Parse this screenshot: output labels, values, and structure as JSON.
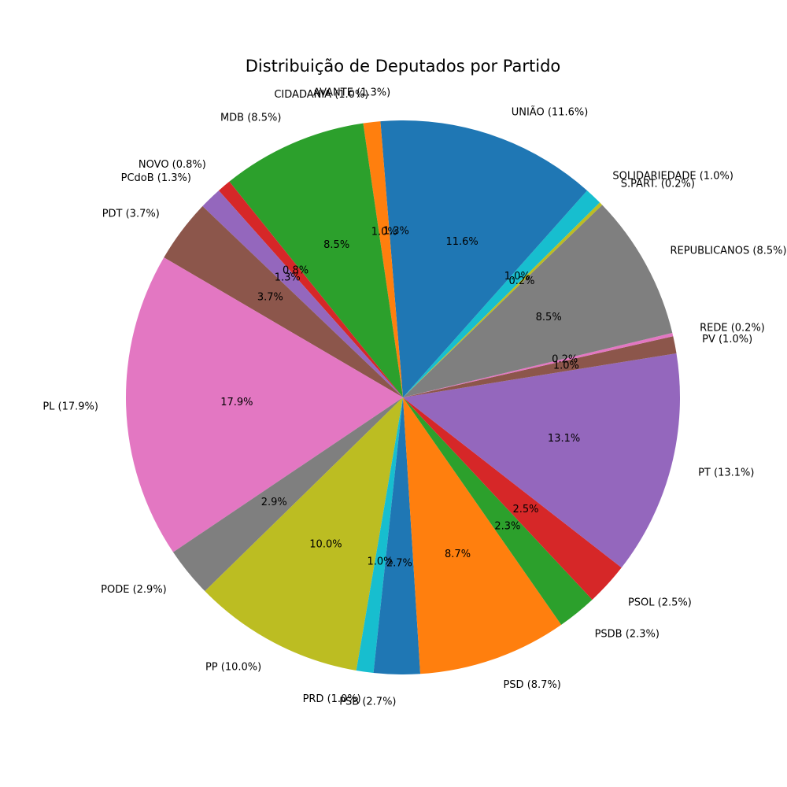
{
  "chart_data": {
    "type": "pie",
    "title": "Distribuição de Deputados por Partido",
    "start_angle_deg": 90,
    "direction": "counterclockwise",
    "slices": [
      {
        "label": "AVANTE (1.3%)",
        "pct_label": "1.3%",
        "value": 1.3,
        "color": "#1f77b4"
      },
      {
        "label": "CIDADANIA (1.0%)",
        "pct_label": "1.0%",
        "value": 1.0,
        "color": "#ff7f0e"
      },
      {
        "label": "MDB (8.5%)",
        "pct_label": "8.5%",
        "value": 8.5,
        "color": "#2ca02c"
      },
      {
        "label": "NOVO (0.8%)",
        "pct_label": "0.8%",
        "value": 0.8,
        "color": "#d62728"
      },
      {
        "label": "PCdoB (1.3%)",
        "pct_label": "1.3%",
        "value": 1.3,
        "color": "#9467bd"
      },
      {
        "label": "PDT (3.7%)",
        "pct_label": "3.7%",
        "value": 3.7,
        "color": "#8c564b"
      },
      {
        "label": "PL (17.9%)",
        "pct_label": "17.9%",
        "value": 17.9,
        "color": "#e377c2"
      },
      {
        "label": "PODE (2.9%)",
        "pct_label": "2.9%",
        "value": 2.9,
        "color": "#7f7f7f"
      },
      {
        "label": "PP (10.0%)",
        "pct_label": "10.0%",
        "value": 10.0,
        "color": "#bcbd22"
      },
      {
        "label": "PRD (1.0%)",
        "pct_label": "1.0%",
        "value": 1.0,
        "color": "#17becf"
      },
      {
        "label": "PSB (2.7%)",
        "pct_label": "2.7%",
        "value": 2.7,
        "color": "#1f77b4"
      },
      {
        "label": "PSD (8.7%)",
        "pct_label": "8.7%",
        "value": 8.7,
        "color": "#ff7f0e"
      },
      {
        "label": "PSDB (2.3%)",
        "pct_label": "2.3%",
        "value": 2.3,
        "color": "#2ca02c"
      },
      {
        "label": "PSOL (2.5%)",
        "pct_label": "2.5%",
        "value": 2.5,
        "color": "#d62728"
      },
      {
        "label": "PT (13.1%)",
        "pct_label": "13.1%",
        "value": 13.1,
        "color": "#9467bd"
      },
      {
        "label": "PV (1.0%)",
        "pct_label": "1.0%",
        "value": 1.0,
        "color": "#8c564b"
      },
      {
        "label": "REDE (0.2%)",
        "pct_label": "0.2%",
        "value": 0.2,
        "color": "#e377c2"
      },
      {
        "label": "REPUBLICANOS (8.5%)",
        "pct_label": "8.5%",
        "value": 8.5,
        "color": "#7f7f7f"
      },
      {
        "label": "S.PART. (0.2%)",
        "pct_label": "0.2%",
        "value": 0.2,
        "color": "#bcbd22"
      },
      {
        "label": "SOLIDARIEDADE (1.0%)",
        "pct_label": "1.0%",
        "value": 1.0,
        "color": "#17becf"
      },
      {
        "label": "UNIÃO (11.6%)",
        "pct_label": "11.6%",
        "value": 11.6,
        "color": "#1f77b4"
      }
    ]
  }
}
